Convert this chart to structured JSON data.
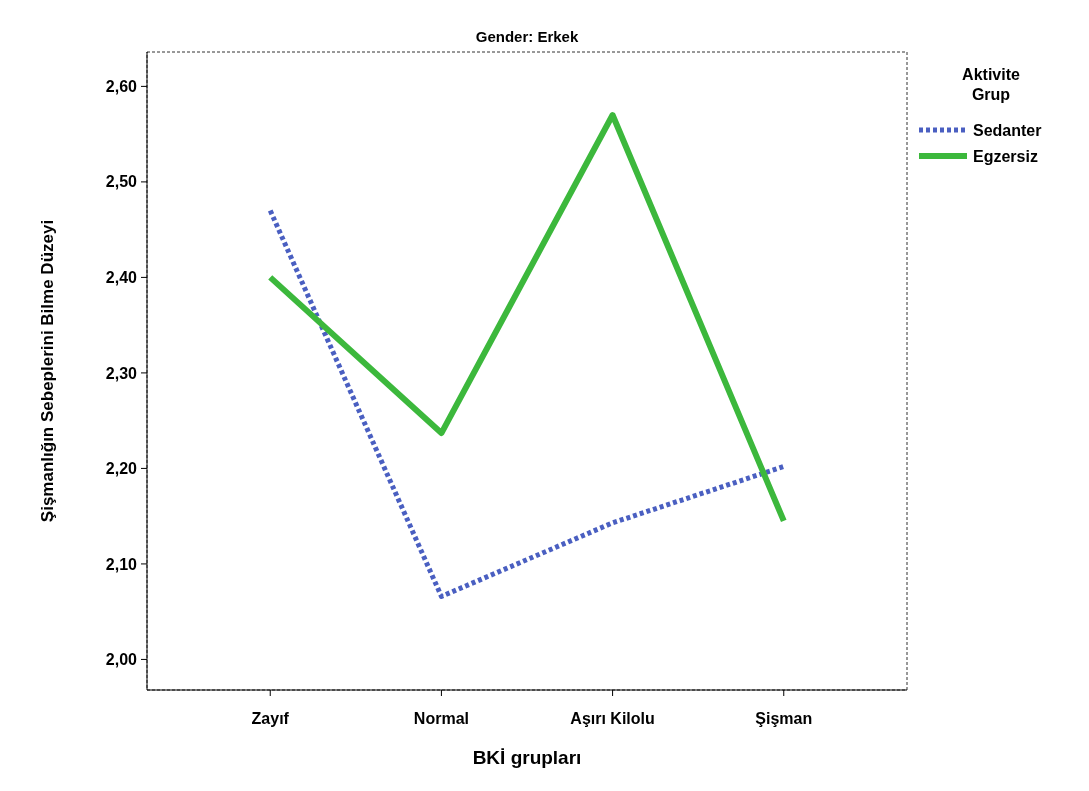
{
  "chart_data": {
    "type": "line",
    "title": "Gender: Erkek",
    "xlabel": "BKİ grupları",
    "ylabel": "Şişmanlığın Sebeplerini Bilme Düzeyi",
    "legend_title": "Aktivite Grup",
    "categories": [
      "Zayıf",
      "Normal",
      "Aşırı Kilolu",
      "Şişman"
    ],
    "series": [
      {
        "name": "Sedanter",
        "color": "#4a5fc1",
        "line_style": "dotted",
        "values": [
          2.47,
          2.066,
          2.143,
          2.202
        ]
      },
      {
        "name": "Egzersiz",
        "color": "#3cb83c",
        "line_style": "solid",
        "values": [
          2.4,
          2.237,
          2.57,
          2.145
        ]
      }
    ],
    "ylim": [
      1.968,
      2.636
    ],
    "yticks": [
      {
        "value": 2.0,
        "label": "2,00"
      },
      {
        "value": 2.1,
        "label": "2,10"
      },
      {
        "value": 2.2,
        "label": "2,20"
      },
      {
        "value": 2.3,
        "label": "2,30"
      },
      {
        "value": 2.4,
        "label": "2,40"
      },
      {
        "value": 2.5,
        "label": "2,50"
      },
      {
        "value": 2.6,
        "label": "2,60"
      }
    ],
    "grid": false,
    "legend": "top right",
    "marker": "none"
  }
}
